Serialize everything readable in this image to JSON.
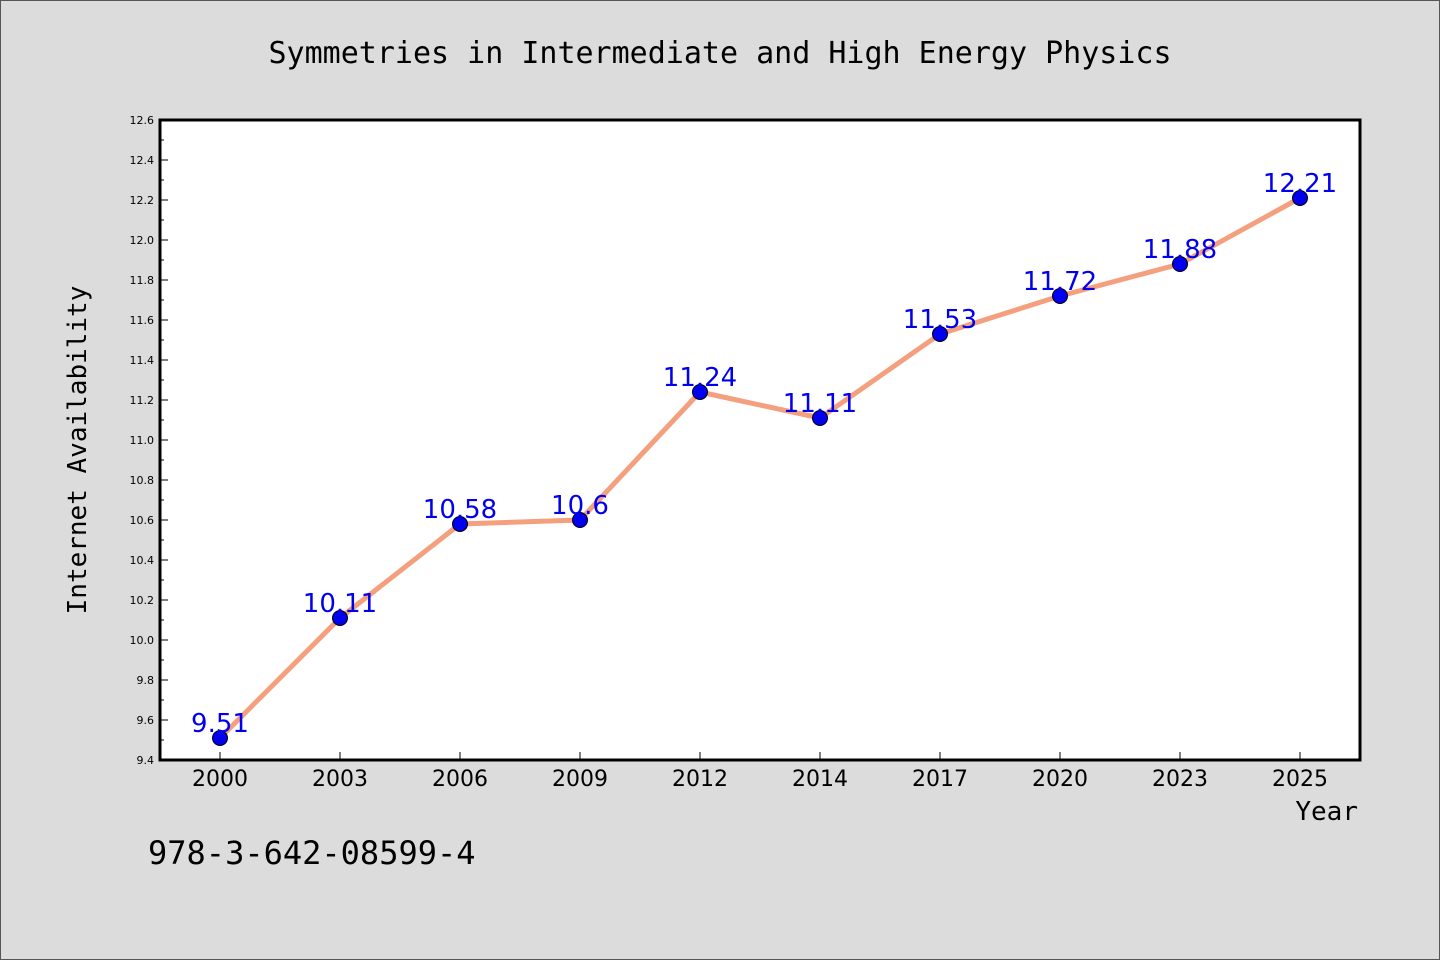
{
  "chart_data": {
    "type": "line",
    "title": "Symmetries in Intermediate and High Energy Physics",
    "xlabel": "Year",
    "ylabel": "Internet Availability",
    "categories": [
      "2000",
      "2003",
      "2006",
      "2009",
      "2012",
      "2014",
      "2017",
      "2020",
      "2023",
      "2025"
    ],
    "series": [
      {
        "values": [
          9.51,
          10.11,
          10.58,
          10.6,
          11.24,
          11.11,
          11.53,
          11.72,
          11.88,
          12.21
        ],
        "labels": [
          "9.51",
          "10.11",
          "10.58",
          "10.6",
          "11.24",
          "11.11",
          "11.53",
          "11.72",
          "11.88",
          "12.21"
        ],
        "line_color": "#f4a07f",
        "marker_color": "#0000ee",
        "label_color": "#0000ee"
      }
    ],
    "ylim": [
      9.4,
      12.6
    ],
    "yticks": [
      "9.4",
      "9.6",
      "9.8",
      "10.0",
      "10.2",
      "10.4",
      "10.6",
      "10.8",
      "11.0",
      "11.2",
      "11.4",
      "11.6",
      "11.8",
      "12.0",
      "12.2",
      "12.4",
      "12.6"
    ],
    "grid": false,
    "legend": "none"
  },
  "footer_text": "978-3-642-08599-4"
}
